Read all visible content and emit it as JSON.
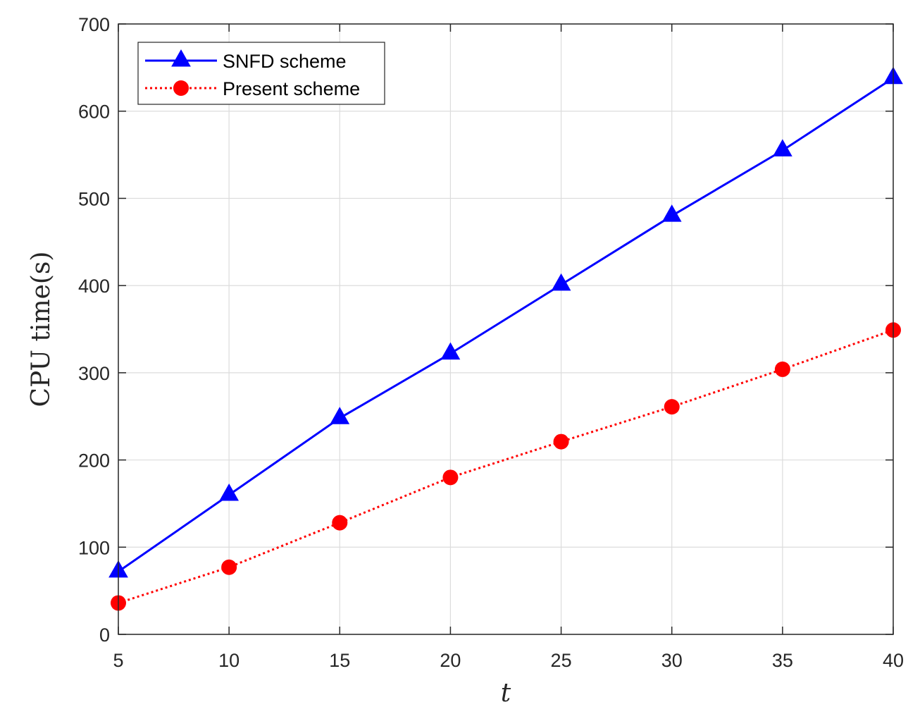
{
  "chart_data": {
    "type": "line",
    "title": "",
    "xlabel": "t",
    "ylabel": "CPU time(s)",
    "x": [
      5,
      10,
      15,
      20,
      25,
      30,
      35,
      40
    ],
    "xlim": [
      5,
      40
    ],
    "ylim": [
      0,
      700
    ],
    "xticks": [
      "5",
      "10",
      "15",
      "20",
      "25",
      "30",
      "35",
      "40"
    ],
    "yticks": [
      "0",
      "100",
      "200",
      "300",
      "400",
      "500",
      "600",
      "700"
    ],
    "grid": true,
    "legend_position": "top-left",
    "series": [
      {
        "name": "SNFD scheme",
        "values": [
          72,
          160,
          248,
          322,
          401,
          480,
          555,
          638
        ],
        "color": "#0000ff",
        "line_style": "solid",
        "marker": "triangle"
      },
      {
        "name": "Present scheme",
        "values": [
          36,
          77,
          128,
          180,
          221,
          261,
          304,
          349
        ],
        "color": "#ff0000",
        "line_style": "dotted",
        "marker": "circle"
      }
    ]
  }
}
